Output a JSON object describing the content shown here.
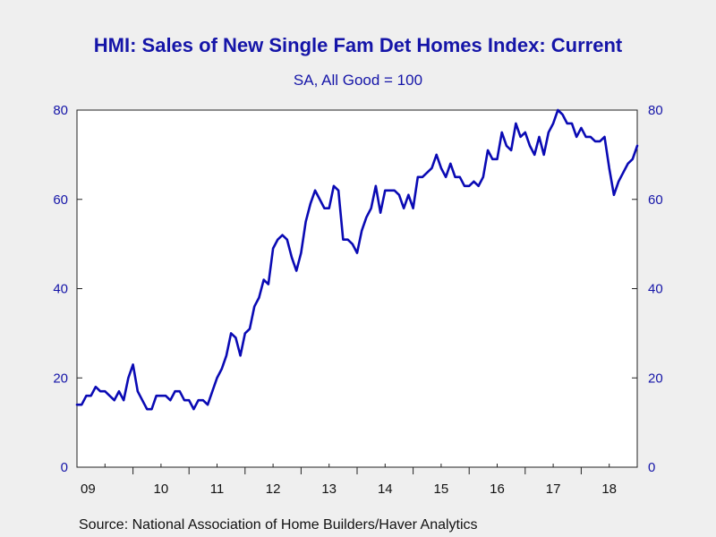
{
  "chart_data": {
    "type": "line",
    "title": "HMI: Sales of New Single Fam Det Homes Index: Current",
    "subtitle": "SA, All Good = 100",
    "xlabel": "",
    "ylabel": "",
    "ylim": [
      0,
      80
    ],
    "yticks": [
      "0",
      "20",
      "40",
      "60",
      "80"
    ],
    "xticks": [
      "09",
      "10",
      "11",
      "12",
      "13",
      "14",
      "15",
      "16",
      "17",
      "18"
    ],
    "xrange": [
      2009,
      2019
    ],
    "grid": false,
    "legend": "none",
    "source": "Source:  National Association of Home Builders/Haver Analytics",
    "colors": {
      "line": "#0a0ab4",
      "text": "#1515a8",
      "plot_bg": "#ffffff",
      "page_bg": "#efefef"
    },
    "series": [
      {
        "start": "2009-01",
        "frequency": "monthly",
        "values": [
          14,
          14,
          16,
          16,
          18,
          17,
          17,
          16,
          15,
          17,
          15,
          20,
          23,
          17,
          15,
          13,
          13,
          16,
          16,
          16,
          15,
          17,
          17,
          15,
          15,
          13,
          15,
          15,
          14,
          17,
          20,
          22,
          25,
          30,
          29,
          25,
          30,
          31,
          36,
          38,
          42,
          41,
          49,
          51,
          52,
          51,
          47,
          44,
          48,
          55,
          59,
          62,
          60,
          58,
          58,
          63,
          62,
          51,
          51,
          50,
          48,
          53,
          56,
          58,
          63,
          57,
          62,
          62,
          62,
          61,
          58,
          61,
          58,
          65,
          65,
          66,
          67,
          70,
          67,
          65,
          68,
          65,
          65,
          63,
          63,
          64,
          63,
          65,
          71,
          69,
          69,
          75,
          72,
          71,
          77,
          74,
          75,
          72,
          70,
          74,
          70,
          75,
          77,
          80,
          79,
          77,
          77,
          74,
          76,
          74,
          74,
          73,
          73,
          74,
          67,
          61,
          64,
          66,
          68,
          69,
          72
        ]
      }
    ]
  }
}
